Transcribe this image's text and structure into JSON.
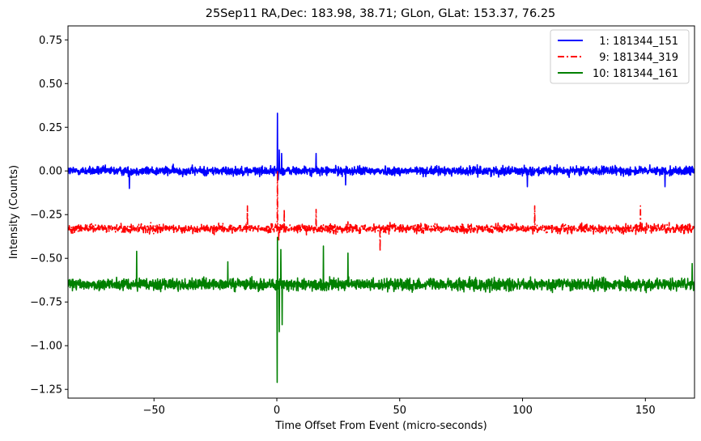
{
  "chart_data": {
    "type": "line",
    "title": "25Sep11 RA,Dec:  183.98,  38.71; GLon, GLat:  153.37,  76.25",
    "xlabel": "Time Offset From Event (micro-seconds)",
    "ylabel": "Intensity (Counts)",
    "xlim": [
      -85,
      170
    ],
    "ylim": [
      -1.3,
      0.83
    ],
    "xticks": [
      -50,
      0,
      50,
      100,
      150
    ],
    "xtick_labels": [
      "−50",
      "0",
      "50",
      "100",
      "150"
    ],
    "yticks": [
      -1.25,
      -1.0,
      -0.75,
      -0.5,
      -0.25,
      0.0,
      0.25,
      0.5,
      0.75
    ],
    "ytick_labels": [
      "−1.25",
      "−1.00",
      "−0.75",
      "−0.50",
      "−0.25",
      "0.00",
      "0.25",
      "0.50",
      "0.75"
    ],
    "grid": false,
    "legend_position": "top-right",
    "series": [
      {
        "name": "1: 181344_151",
        "legend_label": "  1: 181344_151",
        "color": "#0000ff",
        "linestyle": "solid",
        "baseline": 0.0,
        "noise_amplitude": 0.045,
        "spikes": [
          [
            0.3,
            0.33
          ],
          [
            0.6,
            -0.05
          ],
          [
            1.0,
            0.12
          ],
          [
            2.0,
            0.1
          ],
          [
            16.0,
            0.1
          ],
          [
            -60.0,
            -0.1
          ],
          [
            28.0,
            -0.08
          ],
          [
            102.0,
            -0.09
          ],
          [
            158.0,
            -0.09
          ]
        ]
      },
      {
        "name": "9: 181344_319",
        "legend_label": "  9: 181344_319",
        "color": "#ff0000",
        "linestyle": "dashdot",
        "baseline": -0.33,
        "noise_amplitude": 0.045,
        "spikes": [
          [
            0.2,
            0.0
          ],
          [
            -12.0,
            -0.2
          ],
          [
            0.8,
            -0.4
          ],
          [
            3.0,
            -0.22
          ],
          [
            16.0,
            -0.22
          ],
          [
            42.0,
            -0.46
          ],
          [
            105.0,
            -0.2
          ],
          [
            148.0,
            -0.2
          ]
        ]
      },
      {
        "name": "10: 181344_161",
        "legend_label": "10: 181344_161",
        "color": "#008000",
        "linestyle": "solid",
        "baseline": -0.65,
        "noise_amplitude": 0.06,
        "spikes": [
          [
            0.1,
            -1.21
          ],
          [
            0.3,
            -0.38
          ],
          [
            1.0,
            -0.92
          ],
          [
            1.6,
            -0.45
          ],
          [
            2.2,
            -0.88
          ],
          [
            -57.0,
            -0.46
          ],
          [
            -20.0,
            -0.52
          ],
          [
            19.0,
            -0.43
          ],
          [
            29.0,
            -0.47
          ],
          [
            169.0,
            -0.53
          ]
        ]
      }
    ]
  }
}
